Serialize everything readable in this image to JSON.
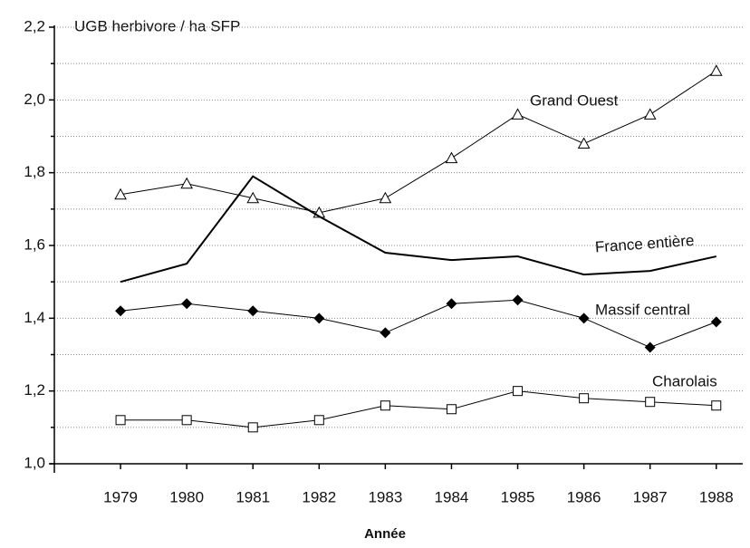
{
  "chart_data": {
    "type": "line",
    "y_label": "UGB herbivore / ha SFP",
    "x_label": "Année",
    "x": [
      1979,
      1980,
      1981,
      1982,
      1983,
      1984,
      1985,
      1986,
      1987,
      1988
    ],
    "xlim": [
      1978,
      1988.4
    ],
    "xticks": [
      1979,
      1980,
      1981,
      1982,
      1983,
      1984,
      1985,
      1986,
      1987,
      1988
    ],
    "ylim": [
      1.0,
      2.2
    ],
    "yticks": [
      {
        "value": 1.0,
        "label": "1,0"
      },
      {
        "value": 1.2,
        "label": "1,2"
      },
      {
        "value": 1.4,
        "label": "1,4"
      },
      {
        "value": 1.6,
        "label": "1,6"
      },
      {
        "value": 1.8,
        "label": "1,8"
      },
      {
        "value": 2.0,
        "label": "2,0"
      },
      {
        "value": 2.2,
        "label": "2,2"
      }
    ],
    "y_minor_ticks": [
      1.1,
      1.3,
      1.5,
      1.7,
      1.9,
      2.1
    ],
    "grid": true,
    "series": [
      {
        "name": "Grand Ouest",
        "color": "#000000",
        "marker": "triangle",
        "values": [
          1.74,
          1.77,
          1.73,
          1.69,
          1.73,
          1.84,
          1.96,
          1.88,
          1.96,
          2.08
        ]
      },
      {
        "name": "France entière",
        "color": "#000000",
        "marker": "none",
        "values": [
          1.5,
          1.55,
          1.79,
          1.68,
          1.58,
          1.56,
          1.57,
          1.52,
          1.53,
          1.57
        ]
      },
      {
        "name": "Massif central",
        "color": "#000000",
        "marker": "diamond",
        "values": [
          1.42,
          1.44,
          1.42,
          1.4,
          1.36,
          1.44,
          1.45,
          1.4,
          1.32,
          1.39
        ]
      },
      {
        "name": "Charolais",
        "color": "#000000",
        "marker": "square",
        "values": [
          1.12,
          1.12,
          1.1,
          1.12,
          1.16,
          1.15,
          1.2,
          1.18,
          1.17,
          1.16
        ]
      }
    ]
  }
}
